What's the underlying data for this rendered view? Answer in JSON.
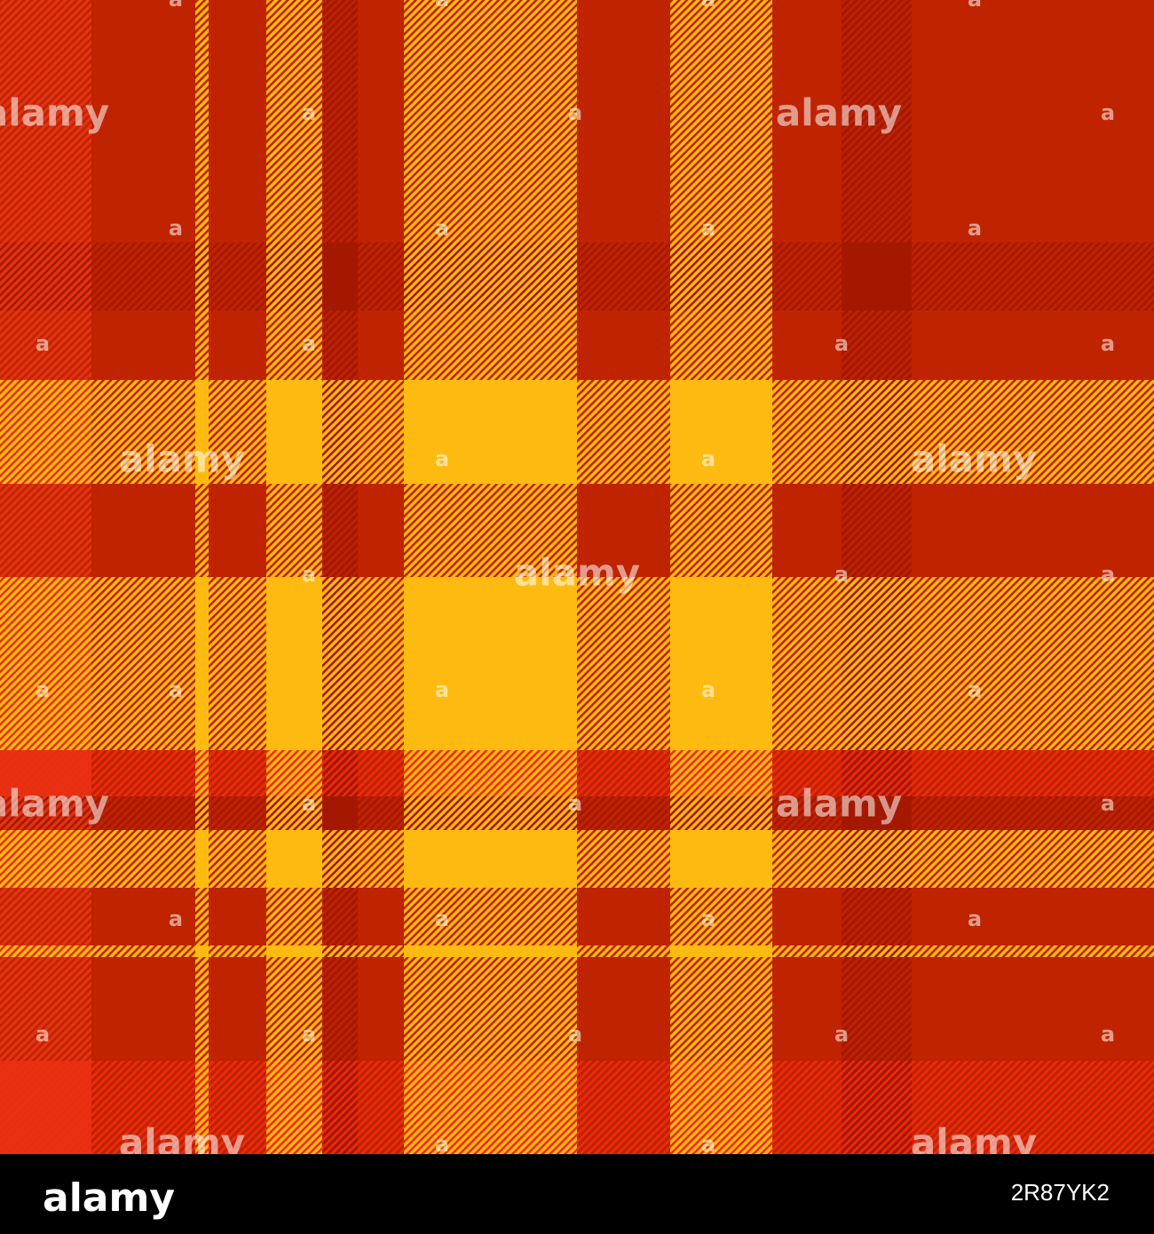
{
  "watermark": "alamy",
  "watermark_small": "a",
  "footer": {
    "logo": "alamy",
    "image_id": "2R87YK2"
  }
}
